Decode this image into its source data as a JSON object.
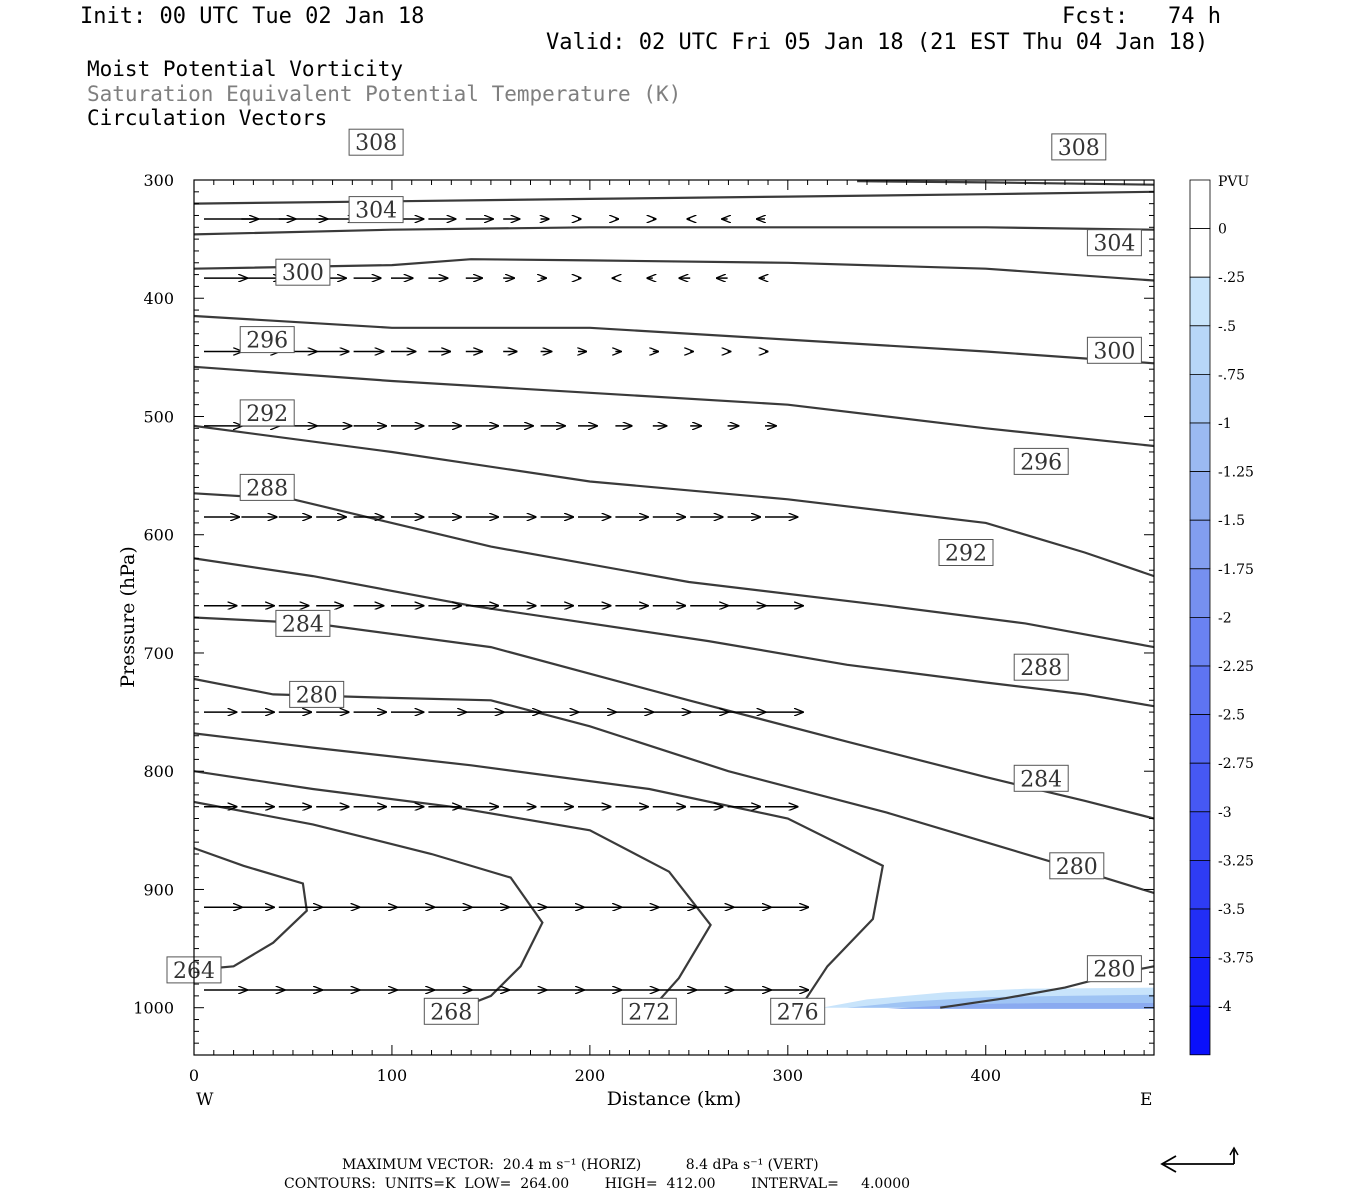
{
  "header": {
    "init": "Init: 00 UTC Tue 02 Jan 18",
    "fcst": "Fcst:   74 h",
    "valid": "Valid: 02 UTC Fri 05 Jan 18 (21 EST Thu 04 Jan 18)",
    "fields": [
      "Moist Potential Vorticity",
      "Saturation Equivalent Potential Temperature (K)",
      "Circulation Vectors"
    ]
  },
  "colors": {
    "contour": "#3a3a3a",
    "vector": "#000000",
    "mpv_fill_light": "#c8e4fb",
    "mpv_fill_mid": "#9fc4f4",
    "mpv_fill_dark": "#8aaaf0"
  },
  "chart_data": {
    "type": "contour",
    "xlabel": "Distance (km)",
    "ylabel": "Pressure (hPa)",
    "xlim": [
      0,
      485
    ],
    "ylim": [
      1040,
      300
    ],
    "xticks": [
      0,
      100,
      200,
      300,
      400
    ],
    "yticks": [
      300,
      400,
      500,
      600,
      700,
      800,
      900,
      1000
    ],
    "x_end_labels": {
      "left": "W",
      "right": "E"
    },
    "contours": [
      {
        "value": 264,
        "label": "264",
        "points": [
          [
            0,
            865
          ],
          [
            25,
            880
          ],
          [
            55,
            895
          ],
          [
            57,
            918
          ],
          [
            40,
            945
          ],
          [
            20,
            965
          ],
          [
            0,
            968
          ]
        ]
      },
      {
        "value": 268,
        "label": "268",
        "points": [
          [
            0,
            826
          ],
          [
            60,
            845
          ],
          [
            120,
            870
          ],
          [
            160,
            890
          ],
          [
            176,
            928
          ],
          [
            165,
            965
          ],
          [
            150,
            990
          ],
          [
            130,
            1003
          ]
        ]
      },
      {
        "value": 272,
        "label": "272",
        "points": [
          [
            0,
            800
          ],
          [
            60,
            815
          ],
          [
            130,
            830
          ],
          [
            200,
            850
          ],
          [
            240,
            885
          ],
          [
            261,
            930
          ],
          [
            245,
            975
          ],
          [
            230,
            1003
          ]
        ]
      },
      {
        "value": 276,
        "label": "276",
        "points": [
          [
            0,
            768
          ],
          [
            60,
            780
          ],
          [
            140,
            795
          ],
          [
            230,
            815
          ],
          [
            300,
            840
          ],
          [
            348,
            880
          ],
          [
            343,
            925
          ],
          [
            320,
            965
          ],
          [
            305,
            1003
          ]
        ]
      },
      {
        "value": 280,
        "label": "280",
        "points": [
          [
            0,
            722
          ],
          [
            40,
            735
          ],
          [
            100,
            738
          ],
          [
            150,
            740
          ],
          [
            200,
            762
          ],
          [
            270,
            800
          ],
          [
            350,
            835
          ],
          [
            410,
            865
          ],
          [
            450,
            885
          ],
          [
            485,
            903
          ]
        ],
        "label_at": [
          [
            62,
            735
          ],
          [
            446,
            880
          ]
        ]
      },
      {
        "value": 280,
        "label": "280",
        "points": [
          [
            377,
            1000
          ],
          [
            410,
            992
          ],
          [
            440,
            983
          ],
          [
            470,
            970
          ],
          [
            485,
            965
          ]
        ],
        "label_at": [
          [
            465,
            967
          ]
        ]
      },
      {
        "value": 284,
        "label": "284",
        "points": [
          [
            0,
            670
          ],
          [
            60,
            675
          ],
          [
            150,
            695
          ],
          [
            250,
            740
          ],
          [
            330,
            775
          ],
          [
            400,
            805
          ],
          [
            450,
            825
          ],
          [
            485,
            840
          ]
        ],
        "label_at": [
          [
            55,
            675
          ],
          [
            428,
            806
          ]
        ]
      },
      {
        "value": 288,
        "label": "288",
        "points": [
          [
            0,
            620
          ],
          [
            60,
            635
          ],
          [
            140,
            660
          ],
          [
            260,
            690
          ],
          [
            330,
            710
          ],
          [
            400,
            725
          ],
          [
            450,
            735
          ],
          [
            485,
            745
          ]
        ],
        "label_at": [
          [
            37,
            560
          ],
          [
            428,
            712
          ]
        ]
      },
      {
        "value": 292,
        "label": "292",
        "points": [
          [
            0,
            565
          ],
          [
            50,
            570
          ],
          [
            150,
            610
          ],
          [
            250,
            640
          ],
          [
            350,
            660
          ],
          [
            420,
            675
          ],
          [
            485,
            695
          ]
        ],
        "label_at": [
          [
            37,
            497
          ],
          [
            390,
            615
          ]
        ]
      },
      {
        "value": 296,
        "label": "296",
        "points": [
          [
            0,
            508
          ],
          [
            100,
            530
          ],
          [
            200,
            555
          ],
          [
            300,
            570
          ],
          [
            400,
            590
          ],
          [
            450,
            615
          ],
          [
            485,
            635
          ]
        ],
        "label_at": [
          [
            37,
            435
          ],
          [
            428,
            538
          ]
        ]
      },
      {
        "value": 300,
        "label": "300",
        "points": [
          [
            0,
            458
          ],
          [
            100,
            470
          ],
          [
            200,
            480
          ],
          [
            300,
            490
          ],
          [
            400,
            510
          ],
          [
            485,
            525
          ]
        ],
        "label_at": [
          [
            55,
            378
          ],
          [
            465,
            444
          ]
        ]
      },
      {
        "value": 304,
        "label": "304",
        "points": [
          [
            0,
            415
          ],
          [
            100,
            425
          ],
          [
            200,
            425
          ],
          [
            300,
            435
          ],
          [
            400,
            445
          ],
          [
            485,
            455
          ]
        ],
        "label_at": [
          [
            92,
            325
          ],
          [
            465,
            353
          ]
        ]
      },
      {
        "value": 308,
        "label": "308",
        "points": [
          [
            0,
            375
          ],
          [
            100,
            372
          ],
          [
            140,
            367
          ],
          [
            200,
            368
          ],
          [
            300,
            370
          ],
          [
            400,
            375
          ],
          [
            485,
            385
          ]
        ],
        "label_at": [
          [
            92,
            268
          ],
          [
            447,
            272
          ]
        ]
      },
      {
        "value": 312,
        "label": "",
        "points": [
          [
            0,
            346
          ],
          [
            100,
            342
          ],
          [
            200,
            340
          ],
          [
            300,
            340
          ],
          [
            400,
            340
          ],
          [
            485,
            342
          ]
        ]
      },
      {
        "value": 316,
        "label": "",
        "points": [
          [
            0,
            320
          ],
          [
            100,
            318
          ],
          [
            200,
            316
          ],
          [
            300,
            314
          ],
          [
            400,
            312
          ],
          [
            485,
            310
          ]
        ]
      },
      {
        "value": 320,
        "label": "",
        "points": [
          [
            335,
            301
          ],
          [
            400,
            302
          ],
          [
            485,
            304
          ]
        ]
      }
    ],
    "mpv_fill": [
      {
        "level": -0.25,
        "points": [
          [
            317,
            1000
          ],
          [
            340,
            993
          ],
          [
            380,
            987
          ],
          [
            420,
            984
          ],
          [
            485,
            983
          ],
          [
            485,
            1000
          ]
        ]
      },
      {
        "level": -0.5,
        "points": [
          [
            330,
            1000
          ],
          [
            360,
            995
          ],
          [
            400,
            991
          ],
          [
            440,
            990
          ],
          [
            485,
            989
          ],
          [
            485,
            1000
          ]
        ]
      },
      {
        "level": -0.75,
        "points": [
          [
            350,
            1001
          ],
          [
            390,
            997
          ],
          [
            430,
            996
          ],
          [
            485,
            996
          ],
          [
            485,
            1001
          ]
        ]
      }
    ],
    "vectors": {
      "rows": [
        {
          "p": 333,
          "u": [
            20,
            20,
            18,
            15,
            12,
            12,
            10,
            10,
            6,
            3,
            1,
            1,
            1,
            -1,
            -2,
            -3
          ],
          "w": [
            0,
            0,
            0,
            0,
            0,
            0,
            0,
            0,
            0,
            0,
            0,
            0,
            0,
            0,
            0,
            0
          ]
        },
        {
          "p": 383,
          "u": [
            16,
            15,
            13,
            11,
            10,
            8,
            7,
            6,
            4,
            2,
            1,
            -1,
            -2,
            -4,
            -4,
            -2
          ],
          "w": [
            0,
            0,
            0,
            0,
            0,
            0,
            0,
            0,
            0,
            0,
            0,
            0,
            0,
            0,
            0,
            0
          ]
        },
        {
          "p": 445,
          "u": [
            14,
            14,
            14,
            12,
            11,
            9,
            8,
            6,
            5,
            4,
            3,
            2,
            2,
            1,
            1,
            1
          ],
          "w": [
            0,
            0,
            0,
            0,
            0,
            0,
            0,
            0,
            0,
            0,
            0,
            0,
            0,
            0,
            0,
            0
          ]
        },
        {
          "p": 508,
          "u": [
            14,
            14,
            14,
            13,
            12,
            12,
            12,
            12,
            11,
            9,
            7,
            6,
            5,
            4,
            4,
            4
          ],
          "w": [
            0,
            0,
            0,
            0,
            0,
            0,
            0,
            0,
            0,
            0,
            0,
            0,
            0,
            0,
            0,
            0
          ]
        },
        {
          "p": 585,
          "u": [
            13,
            13,
            12,
            11,
            11,
            12,
            12,
            12,
            12,
            12,
            12,
            12,
            12,
            12,
            12,
            12
          ],
          "w": [
            0,
            0,
            0,
            0,
            0,
            0,
            0,
            0,
            0,
            0,
            0,
            0,
            0,
            0,
            0,
            0
          ]
        },
        {
          "p": 660,
          "u": [
            12,
            12,
            11,
            10,
            11,
            12,
            12,
            12,
            12,
            12,
            12,
            12,
            12,
            14,
            14,
            14
          ],
          "w": [
            0,
            0,
            0,
            0,
            0,
            0,
            0,
            0,
            0,
            0,
            0,
            0,
            0,
            0,
            0,
            0
          ]
        },
        {
          "p": 750,
          "u": [
            12,
            12,
            12,
            12,
            12,
            12,
            14,
            14,
            14,
            14,
            14,
            14,
            14,
            14,
            14,
            14
          ],
          "w": [
            0,
            0,
            0,
            0,
            0,
            0,
            0,
            0,
            0,
            0,
            0,
            0,
            0,
            0,
            0,
            0
          ]
        },
        {
          "p": 830,
          "u": [
            12,
            12,
            12,
            12,
            12,
            12,
            12,
            12,
            12,
            12,
            12,
            12,
            12,
            12,
            12,
            12
          ],
          "w": [
            0,
            0,
            0,
            0,
            0,
            0,
            0,
            0,
            0,
            0,
            0,
            0,
            0,
            0,
            0,
            0
          ]
        },
        {
          "p": 915,
          "u": [
            14,
            12,
            16,
            16,
            16,
            16,
            16,
            16,
            16,
            16,
            16,
            16,
            16,
            16,
            16,
            16
          ],
          "w": [
            0,
            0,
            0,
            0,
            0,
            0,
            0,
            0,
            0,
            0,
            0,
            0,
            0,
            0,
            0,
            0
          ]
        },
        {
          "p": 985,
          "u": [
            16,
            16,
            16,
            16,
            16,
            16,
            16,
            16,
            16,
            16,
            16,
            16,
            16,
            16,
            16,
            16
          ],
          "w": [
            0,
            0,
            0,
            0,
            0,
            0,
            0,
            0,
            0,
            0,
            0,
            0,
            0,
            0,
            0,
            0
          ]
        }
      ]
    },
    "colorbar": {
      "title": "PVU",
      "labels": [
        "0",
        "-.25",
        "-.5",
        "-.75",
        "-1",
        "-1.25",
        "-1.5",
        "-1.75",
        "-2",
        "-2.25",
        "-2.5",
        "-2.75",
        "-3",
        "-3.25",
        "-3.5",
        "-3.75",
        "-4"
      ],
      "levels": [
        0.25,
        0,
        -0.25,
        -0.5,
        -0.75,
        -1,
        -1.25,
        -1.5,
        -1.75,
        -2,
        -2.25,
        -2.5,
        -2.75,
        -3,
        -3.25,
        -3.5,
        -3.75,
        -4
      ],
      "colors": [
        "#ffffff",
        "#ffffff",
        "#c8e4fb",
        "#b7d6f8",
        "#a8c8f5",
        "#9bbaf2",
        "#8eacef",
        "#829ef0",
        "#7690f0",
        "#6a82f2",
        "#5e74f2",
        "#5266f3",
        "#4658f3",
        "#3a4af4",
        "#2e3cf5",
        "#222ef6",
        "#161ff8",
        "#0a10fb"
      ]
    },
    "footer": {
      "line1": "MAXIMUM VECTOR:  20.4 m s⁻¹ (HORIZ)          8.4 dPa s⁻¹ (VERT)",
      "line2": "CONTOURS:  UNITS=K  LOW=  264.00        HIGH=  412.00        INTERVAL=     4.0000"
    }
  }
}
